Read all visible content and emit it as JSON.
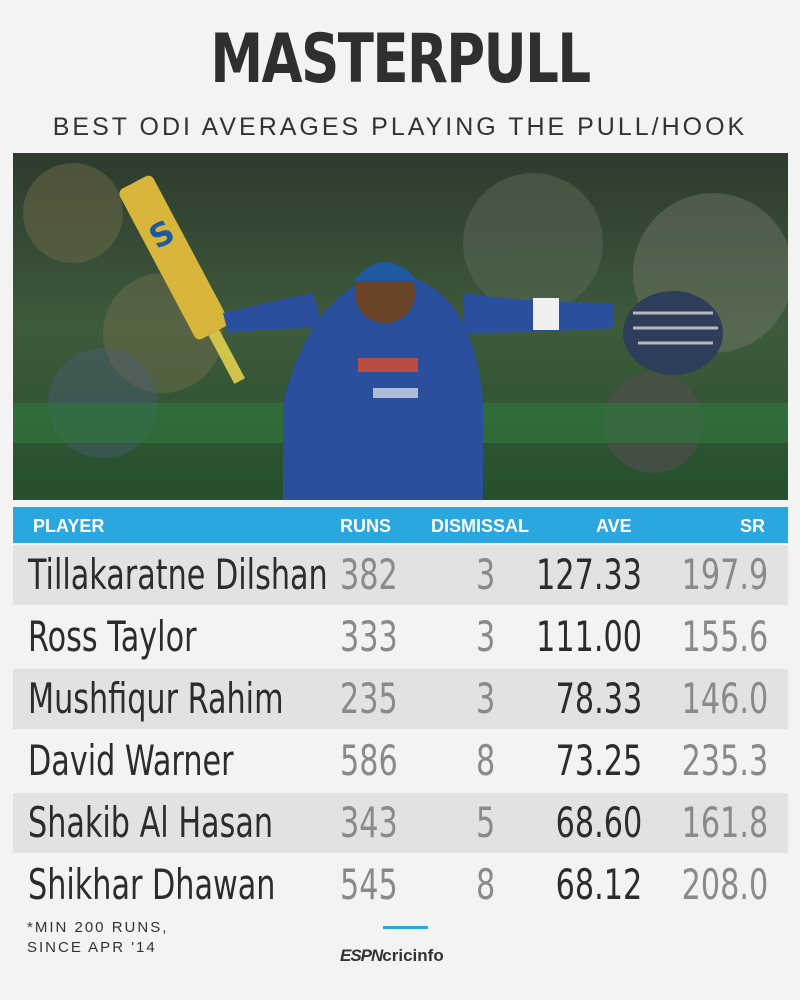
{
  "title": "MASTERPULL",
  "subtitle": "BEST ODI AVERAGES PLAYING THE PULL/HOOK",
  "table": {
    "headers": {
      "player": "PLAYER",
      "runs": "RUNS",
      "dismissal": "DISMISSAL",
      "ave": "AVE",
      "sr": "SR"
    },
    "rows": [
      {
        "player": "Tillakaratne Dilshan",
        "runs": "382",
        "dismissal": "3",
        "ave": "127.33",
        "sr": "197.9"
      },
      {
        "player": "Ross Taylor",
        "runs": "333",
        "dismissal": "3",
        "ave": "111.00",
        "sr": "155.6"
      },
      {
        "player": "Mushfiqur Rahim",
        "runs": "235",
        "dismissal": "3",
        "ave": "78.33",
        "sr": "146.0"
      },
      {
        "player": "David Warner",
        "runs": "586",
        "dismissal": "8",
        "ave": "73.25",
        "sr": "235.3"
      },
      {
        "player": "Shakib Al Hasan",
        "runs": "343",
        "dismissal": "5",
        "ave": "68.60",
        "sr": "161.8"
      },
      {
        "player": "Shikhar Dhawan",
        "runs": "545",
        "dismissal": "8",
        "ave": "68.12",
        "sr": "208.0"
      }
    ]
  },
  "footnote": {
    "line1": "*MIN 200 RUNS,",
    "line2": "SINCE APR '14"
  },
  "logo": {
    "part1": "ESPN",
    "part2": "cricinfo"
  },
  "colors": {
    "accent": "#2aa7df",
    "background": "#f3f3f3",
    "row_shade": "#e2e2e2"
  }
}
